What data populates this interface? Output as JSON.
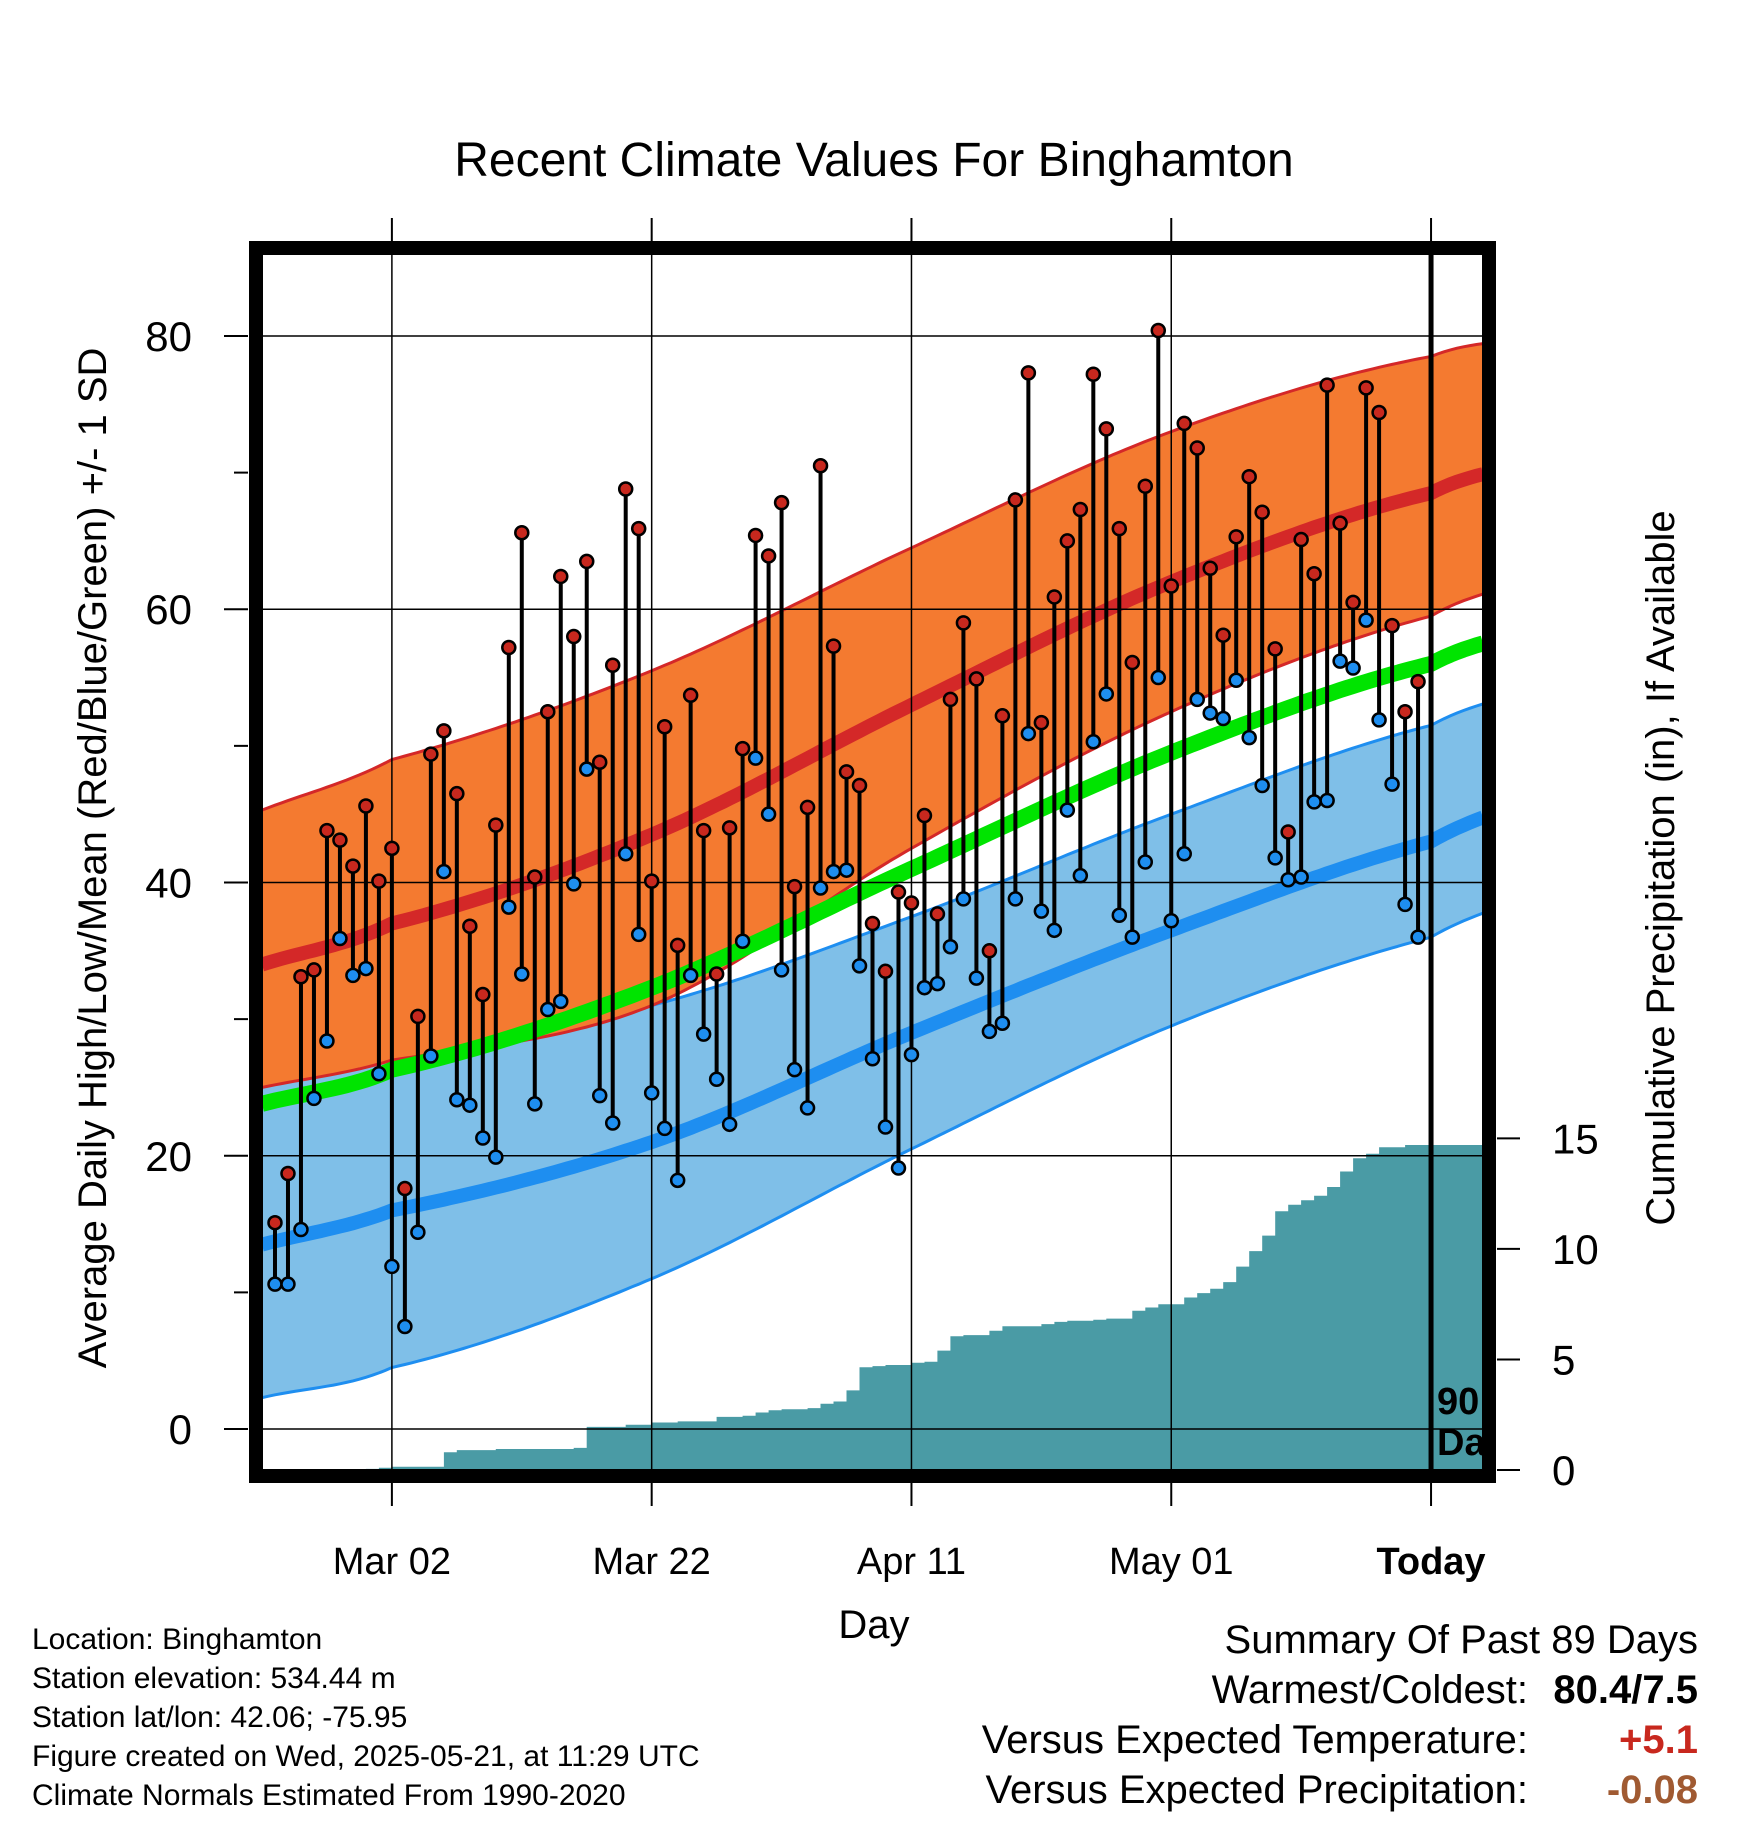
{
  "chart_data": {
    "type": "line",
    "title": "Recent Climate Values For Binghamton",
    "xlabel": "Day",
    "ylabel": "Average Daily High/Low/Mean (Red/Blue/Green) +/- 1 SD",
    "y2label": "Cumulative Precipitation (in), If Available",
    "x_range": [
      "2025-02-20",
      "2025-05-25"
    ],
    "ylim": [
      -3,
      86
    ],
    "y2lim": [
      0,
      55
    ],
    "x_ticks": [
      {
        "date": "2025-03-02",
        "label": "Mar 02"
      },
      {
        "date": "2025-03-22",
        "label": "Mar 22"
      },
      {
        "date": "2025-04-11",
        "label": "Apr 11"
      },
      {
        "date": "2025-05-01",
        "label": "May 01"
      },
      {
        "date": "2025-05-21",
        "label": "Today"
      }
    ],
    "y_ticks": [
      0,
      20,
      40,
      60,
      80
    ],
    "y2_ticks": [
      0,
      5,
      10,
      15
    ],
    "grid": true,
    "today_marker": {
      "date": "2025-05-21",
      "label_line1": "90",
      "label_line2": "Days"
    },
    "colors": {
      "high_band": "#f47a30",
      "high_line": "#d42828",
      "low_band": "#7fbfe8",
      "low_line": "#1e8ef0",
      "mean_line": "#00e400",
      "precip": "#4a9ba5",
      "high_dot": "#c8281e",
      "low_dot": "#1e8ef0"
    },
    "normals": {
      "dates": [
        "2025-02-20",
        "2025-03-02",
        "2025-03-22",
        "2025-04-11",
        "2025-05-01",
        "2025-05-21",
        "2025-05-30"
      ],
      "high_mean": [
        34.0,
        37.0,
        43.5,
        53.0,
        62.0,
        68.5,
        71.0
      ],
      "high_plus_sd": [
        45.3,
        49.0,
        55.5,
        64.5,
        73.0,
        78.5,
        80.0
      ],
      "high_minus_sd": [
        25.0,
        27.0,
        31.0,
        42.5,
        52.5,
        59.5,
        62.5
      ],
      "low_mean": [
        13.5,
        16.0,
        21.0,
        29.0,
        36.5,
        43.0,
        46.5
      ],
      "low_plus_sd": [
        25.5,
        27.5,
        31.0,
        37.5,
        45.0,
        51.5,
        54.5
      ],
      "low_minus_sd": [
        2.3,
        4.5,
        11.0,
        20.5,
        29.5,
        36.0,
        39.5
      ],
      "mean": [
        23.8,
        26.3,
        32.3,
        41.0,
        49.5,
        56.0,
        58.8
      ]
    },
    "daily": {
      "start_date": "2025-02-21",
      "high": [
        15.1,
        18.7,
        33.1,
        33.6,
        43.8,
        43.1,
        41.2,
        45.6,
        40.1,
        42.5,
        17.6,
        30.2,
        49.4,
        51.1,
        46.5,
        36.8,
        31.8,
        44.2,
        57.2,
        65.6,
        40.4,
        52.5,
        62.4,
        58.0,
        63.5,
        48.8,
        55.9,
        68.8,
        65.9,
        40.1,
        51.4,
        35.4,
        53.7,
        43.8,
        33.3,
        44.0,
        49.8,
        65.4,
        63.9,
        67.8,
        39.7,
        45.5,
        70.5,
        57.3,
        48.1,
        47.1,
        37.0,
        33.5,
        39.3,
        38.5,
        44.9,
        37.7,
        53.4,
        59.0,
        54.9,
        35.0,
        52.2,
        68.0,
        77.3,
        51.7,
        60.9,
        65.0,
        67.3,
        77.2,
        73.2,
        65.9,
        56.1,
        69.0,
        80.4,
        61.7,
        73.6,
        71.8,
        63.0,
        58.1,
        65.3,
        69.7,
        67.1,
        57.1,
        43.7,
        65.1,
        62.6,
        76.4,
        66.3,
        60.5,
        76.2,
        74.4,
        58.8,
        52.5,
        54.7
      ],
      "low": [
        10.6,
        10.6,
        14.6,
        24.2,
        28.4,
        35.9,
        33.2,
        33.7,
        26.0,
        11.9,
        7.5,
        14.4,
        27.3,
        40.8,
        24.1,
        23.7,
        21.3,
        19.9,
        38.2,
        33.3,
        23.8,
        30.7,
        31.3,
        39.9,
        48.3,
        24.4,
        22.4,
        42.1,
        36.2,
        24.6,
        22.0,
        18.2,
        33.2,
        28.9,
        25.6,
        22.3,
        35.7,
        49.1,
        45.0,
        33.6,
        26.3,
        23.5,
        39.6,
        40.8,
        40.9,
        33.9,
        27.1,
        22.1,
        19.1,
        27.4,
        32.3,
        32.6,
        35.3,
        38.8,
        33.0,
        29.1,
        29.7,
        38.8,
        50.9,
        37.9,
        36.5,
        45.3,
        40.5,
        50.3,
        53.8,
        37.6,
        36.0,
        41.5,
        55.0,
        37.2,
        42.1,
        53.4,
        52.4,
        52.0,
        54.8,
        50.6,
        47.1,
        41.8,
        40.2,
        40.4,
        45.9,
        46.0,
        56.2,
        55.7,
        59.2,
        51.9,
        47.2,
        38.4,
        36.0
      ]
    },
    "precip_cumulative": {
      "start_date": "2025-02-21",
      "values": [
        0,
        0,
        0,
        0,
        0,
        0,
        0,
        0.05,
        0.1,
        0.15,
        0.15,
        0.15,
        0.15,
        0.8,
        0.9,
        0.9,
        0.9,
        0.95,
        0.95,
        0.95,
        0.95,
        0.95,
        0.95,
        1.0,
        1.95,
        1.95,
        1.95,
        2.05,
        2.05,
        2.15,
        2.15,
        2.2,
        2.2,
        2.2,
        2.4,
        2.4,
        2.45,
        2.6,
        2.7,
        2.75,
        2.75,
        2.8,
        3.0,
        3.1,
        3.6,
        4.65,
        4.7,
        4.75,
        4.75,
        4.85,
        4.9,
        5.4,
        6.05,
        6.1,
        6.1,
        6.3,
        6.5,
        6.5,
        6.5,
        6.6,
        6.7,
        6.75,
        6.75,
        6.8,
        6.85,
        6.85,
        7.2,
        7.35,
        7.5,
        7.5,
        7.8,
        8.0,
        8.2,
        8.5,
        9.2,
        9.9,
        10.6,
        11.7,
        12.0,
        12.2,
        12.4,
        12.8,
        13.5,
        14.1,
        14.3,
        14.6,
        14.6,
        14.7,
        14.7
      ]
    }
  },
  "info": {
    "location": "Location: Binghamton",
    "elevation": "Station elevation: 534.44 m",
    "latlon": "Station lat/lon: 42.06; -75.95",
    "created": "Figure created on Wed, 2025-05-21, at 11:29 UTC",
    "normals": "Climate Normals Estimated From 1990-2020"
  },
  "summary": {
    "title": "Summary Of Past 89 Days",
    "warm_cold_label": "Warmest/Coldest:",
    "warm_cold_value": "80.4/7.5",
    "temp_label": "Versus Expected Temperature:",
    "temp_value": "+5.1",
    "temp_color": "#c8281e",
    "precip_label": "Versus Expected Precipitation:",
    "precip_value": "-0.08",
    "precip_color": "#a05a32"
  }
}
